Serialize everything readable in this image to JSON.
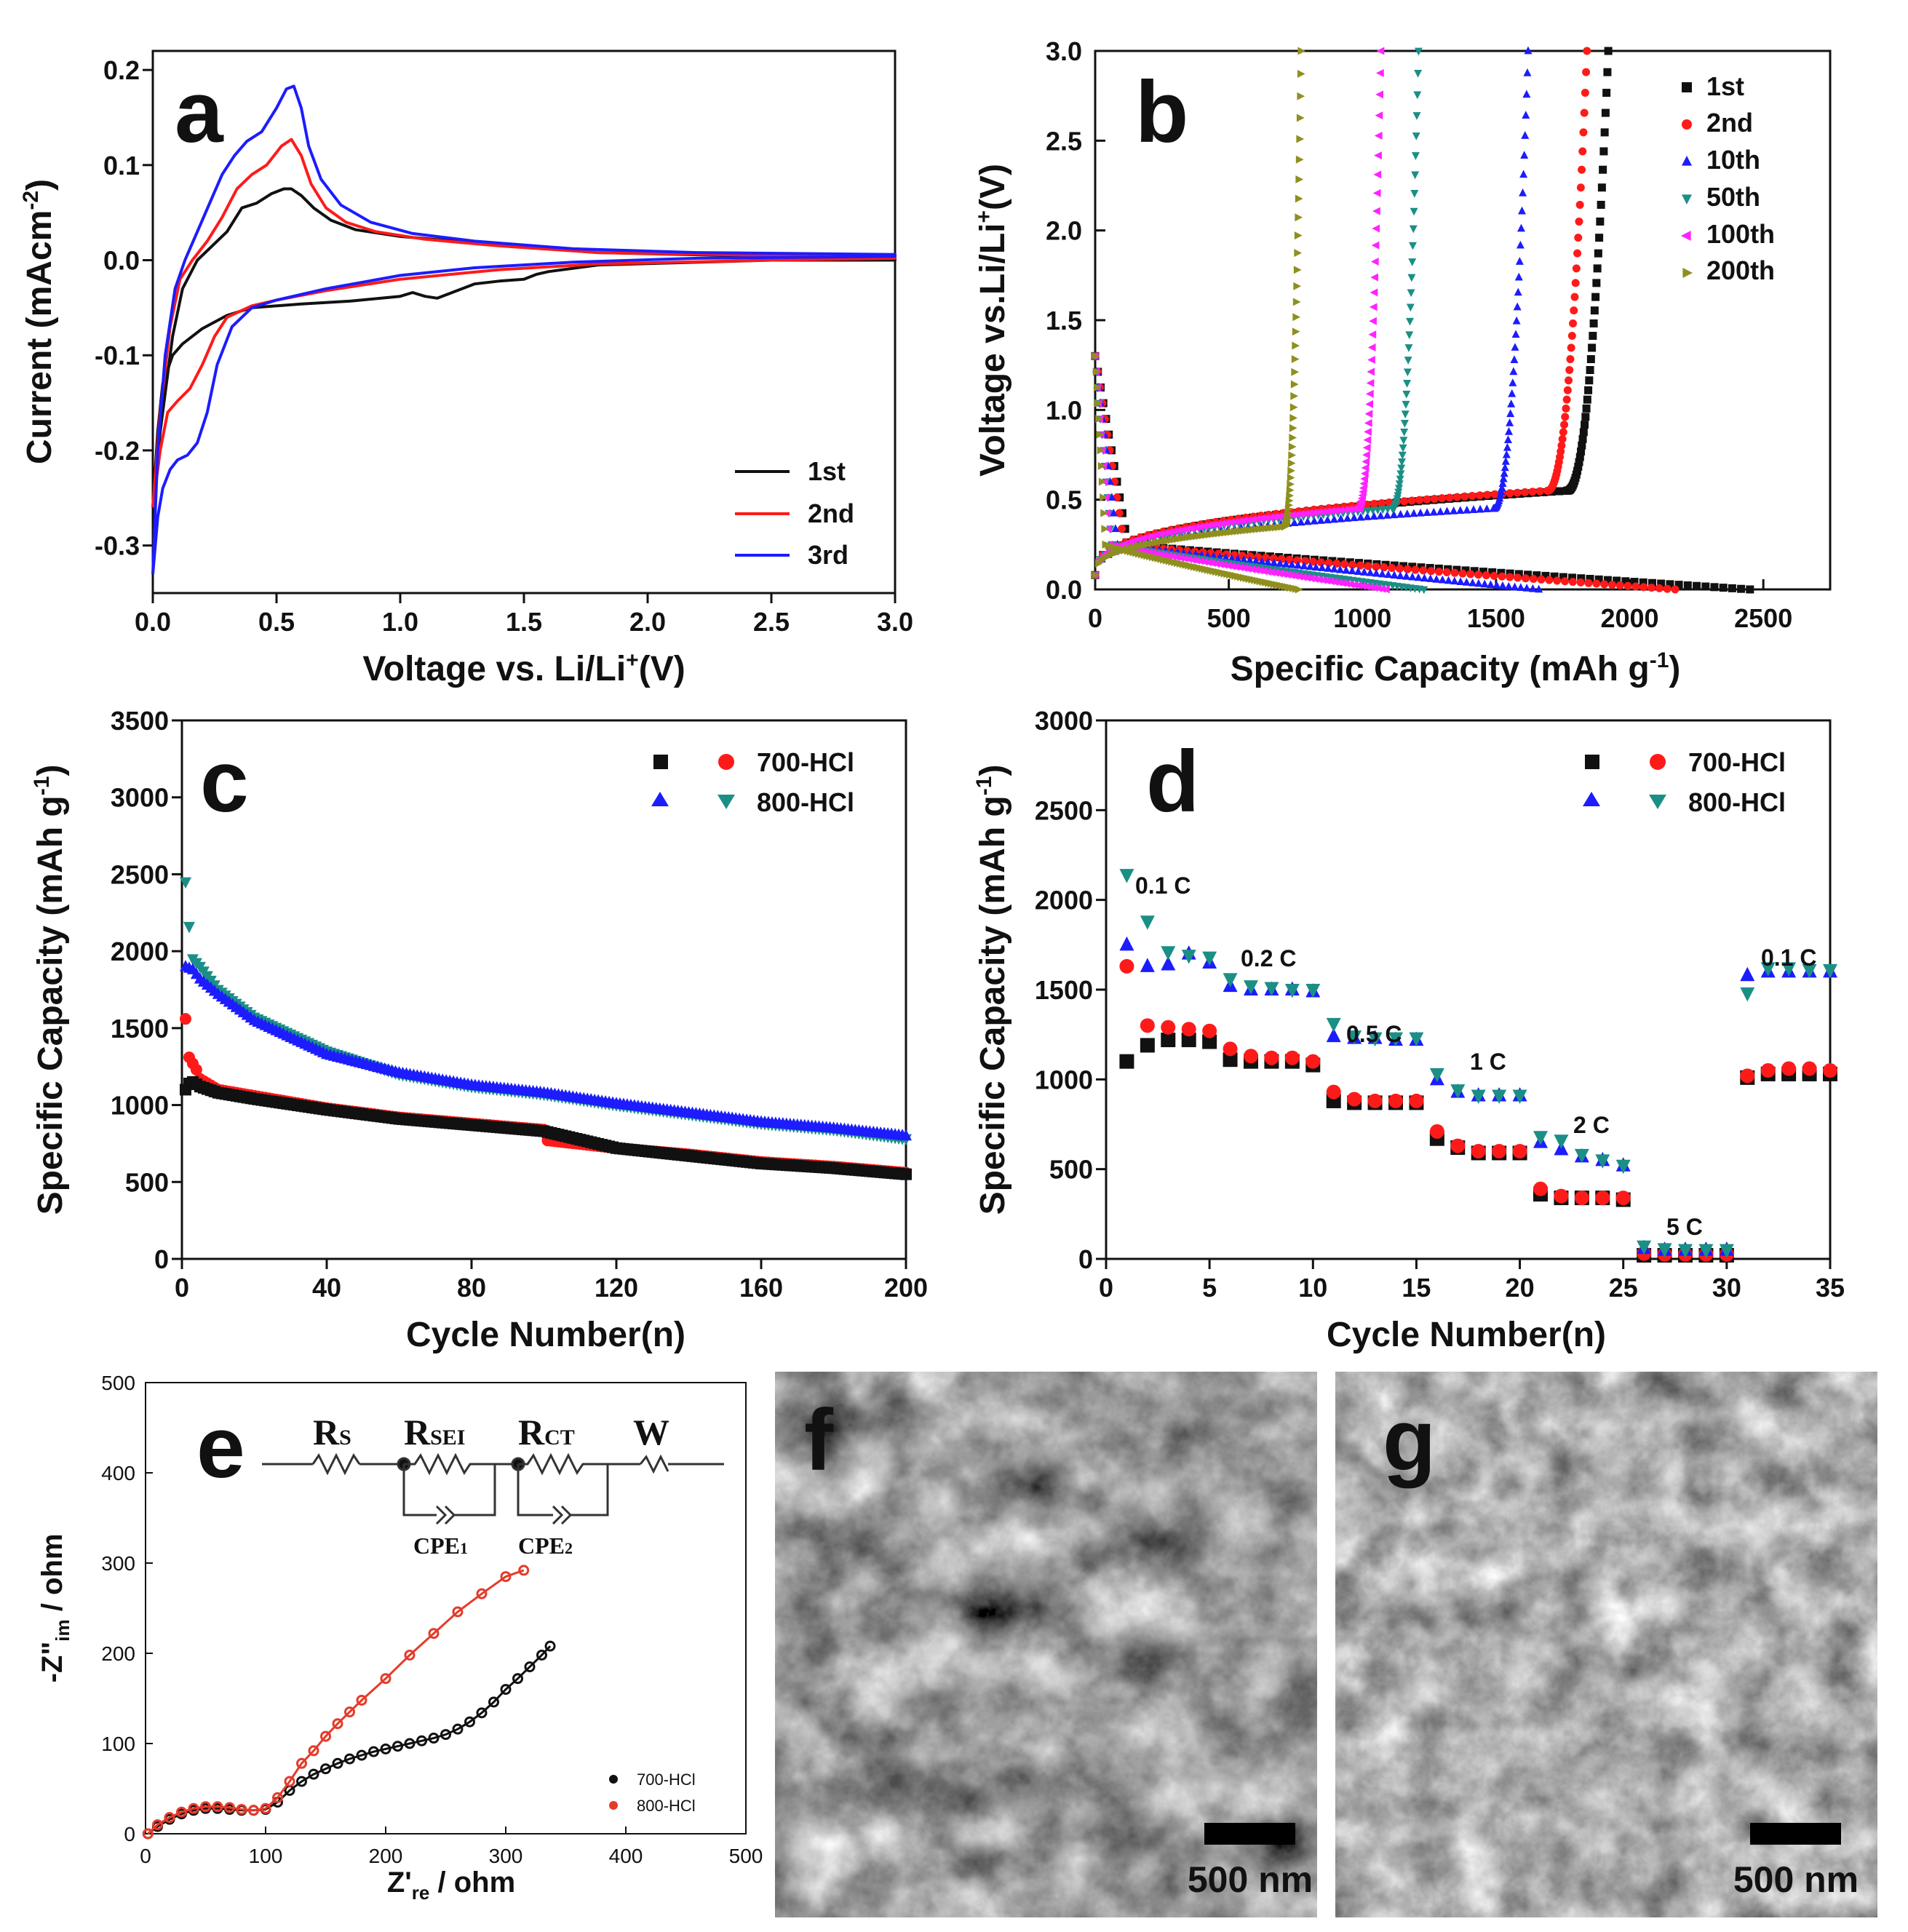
{
  "colors": {
    "black": "#111111",
    "red": "#ff1a1a",
    "blue": "#1c1cff",
    "teal": "#1b8f86",
    "magenta": "#ff22ff",
    "olive": "#8f8f1f",
    "darkred": "#e53b2a"
  },
  "chart_data": [
    {
      "id": "a",
      "type": "line",
      "panel_label": "a",
      "xlabel": "Voltage  vs. Li/Li",
      "xlabel_sup": "+",
      "xlabel_tail": "(V)",
      "ylabel": "Current (mAcm",
      "ylabel_sup": "-2",
      "ylabel_tail": ")",
      "xlim": [
        0,
        3
      ],
      "ylim": [
        -0.35,
        0.22
      ],
      "xticks": [
        "0.0",
        "0.5",
        "1.0",
        "1.5",
        "2.0",
        "2.5",
        "3.0"
      ],
      "yticks": [
        "-0.3",
        "-0.2",
        "-0.1",
        "0.0",
        "0.1",
        "0.2"
      ],
      "legend": [
        "1st",
        "2nd",
        "3rd"
      ],
      "series": [
        {
          "name": "1st",
          "color": "black",
          "x": [
            0.0,
            0.03,
            0.08,
            0.12,
            0.18,
            0.24,
            0.3,
            0.36,
            0.42,
            0.48,
            0.53,
            0.56,
            0.6,
            0.65,
            0.72,
            0.82,
            1.0,
            1.4,
            1.8,
            2.5,
            3.0,
            3.0,
            2.5,
            1.8,
            1.6,
            1.55,
            1.5,
            1.4,
            1.3,
            1.2,
            1.15,
            1.1,
            1.05,
            1.0,
            0.8,
            0.6,
            0.4,
            0.3,
            0.2,
            0.12,
            0.08,
            0.04,
            0.02,
            0.0
          ],
          "y": [
            -0.26,
            -0.18,
            -0.08,
            -0.03,
            0.0,
            0.015,
            0.03,
            0.055,
            0.06,
            0.07,
            0.075,
            0.075,
            0.068,
            0.055,
            0.042,
            0.032,
            0.025,
            0.016,
            0.008,
            0.004,
            0.003,
            0.0,
            0.0,
            -0.005,
            -0.012,
            -0.015,
            -0.02,
            -0.022,
            -0.025,
            -0.035,
            -0.04,
            -0.038,
            -0.034,
            -0.038,
            -0.043,
            -0.046,
            -0.05,
            -0.058,
            -0.072,
            -0.088,
            -0.1,
            -0.13,
            -0.18,
            -0.26
          ]
        },
        {
          "name": "2nd",
          "color": "red",
          "x": [
            0.0,
            0.03,
            0.07,
            0.11,
            0.16,
            0.22,
            0.28,
            0.34,
            0.4,
            0.46,
            0.52,
            0.56,
            0.6,
            0.64,
            0.7,
            0.78,
            0.9,
            1.1,
            1.4,
            1.8,
            2.5,
            3.0,
            3.0,
            2.5,
            1.8,
            1.4,
            1.0,
            0.7,
            0.5,
            0.4,
            0.3,
            0.25,
            0.2,
            0.15,
            0.1,
            0.06,
            0.03,
            0.0
          ],
          "y": [
            -0.26,
            -0.16,
            -0.07,
            -0.02,
            0.0,
            0.02,
            0.045,
            0.075,
            0.09,
            0.1,
            0.12,
            0.127,
            0.11,
            0.08,
            0.055,
            0.04,
            0.03,
            0.022,
            0.015,
            0.008,
            0.005,
            0.005,
            0.002,
            0.0,
            -0.004,
            -0.01,
            -0.02,
            -0.032,
            -0.042,
            -0.048,
            -0.06,
            -0.08,
            -0.11,
            -0.135,
            -0.148,
            -0.16,
            -0.2,
            -0.26
          ]
        },
        {
          "name": "3rd",
          "color": "blue",
          "x": [
            0.0,
            0.02,
            0.05,
            0.09,
            0.13,
            0.18,
            0.23,
            0.28,
            0.33,
            0.38,
            0.44,
            0.5,
            0.54,
            0.57,
            0.6,
            0.63,
            0.68,
            0.76,
            0.88,
            1.05,
            1.3,
            1.7,
            2.2,
            3.0,
            3.0,
            2.2,
            1.7,
            1.3,
            1.0,
            0.7,
            0.5,
            0.4,
            0.32,
            0.26,
            0.22,
            0.18,
            0.14,
            0.1,
            0.07,
            0.04,
            0.02,
            0.0
          ],
          "y": [
            -0.33,
            -0.2,
            -0.1,
            -0.03,
            0.0,
            0.03,
            0.06,
            0.09,
            0.11,
            0.125,
            0.135,
            0.16,
            0.18,
            0.183,
            0.16,
            0.12,
            0.085,
            0.058,
            0.04,
            0.028,
            0.02,
            0.012,
            0.008,
            0.006,
            0.004,
            0.002,
            -0.002,
            -0.008,
            -0.016,
            -0.03,
            -0.042,
            -0.05,
            -0.07,
            -0.11,
            -0.16,
            -0.192,
            -0.205,
            -0.21,
            -0.22,
            -0.24,
            -0.27,
            -0.33
          ]
        }
      ]
    },
    {
      "id": "b",
      "type": "scatter",
      "panel_label": "b",
      "xlabel": "Specific Capacity (mAh g",
      "xlabel_sup": "-1",
      "xlabel_tail": ")",
      "ylabel": "Voltage vs.Li/Li",
      "ylabel_sup": "+",
      "ylabel_tail": "(V)",
      "xlim": [
        0,
        2750
      ],
      "ylim": [
        0,
        3.0
      ],
      "xticks": [
        "0",
        "500",
        "1000",
        "1500",
        "2000",
        "2500"
      ],
      "yticks": [
        "0.0",
        "0.5",
        "1.0",
        "1.5",
        "2.0",
        "2.5",
        "3.0"
      ],
      "legend": [
        "1st",
        "2nd",
        "10th",
        "50th",
        "100th",
        "200th"
      ],
      "series": [
        {
          "name": "1st",
          "color": "black",
          "marker": "square",
          "discharge_capacity": 2450,
          "charge_capacity": 1920,
          "plateau": 0.55
        },
        {
          "name": "2nd",
          "color": "red",
          "marker": "circle",
          "discharge_capacity": 2170,
          "charge_capacity": 1840,
          "plateau": 0.55
        },
        {
          "name": "10th",
          "color": "blue",
          "marker": "triangle-up",
          "discharge_capacity": 1660,
          "charge_capacity": 1620,
          "plateau": 0.45
        },
        {
          "name": "50th",
          "color": "teal",
          "marker": "triangle-down",
          "discharge_capacity": 1230,
          "charge_capacity": 1210,
          "plateau": 0.45
        },
        {
          "name": "100th",
          "color": "magenta",
          "marker": "triangle-left",
          "discharge_capacity": 1090,
          "charge_capacity": 1070,
          "plateau": 0.45
        },
        {
          "name": "200th",
          "color": "olive",
          "marker": "triangle-right",
          "discharge_capacity": 760,
          "charge_capacity": 770,
          "plateau": 0.35
        }
      ]
    },
    {
      "id": "c",
      "type": "scatter",
      "panel_label": "c",
      "xlabel": "Cycle Number(n)",
      "ylabel": "Specific Capacity (mAh g",
      "ylabel_sup": "-1",
      "ylabel_tail": ")",
      "xlim": [
        0,
        200
      ],
      "ylim": [
        0,
        3500
      ],
      "xticks": [
        "0",
        "40",
        "80",
        "120",
        "160",
        "200"
      ],
      "yticks": [
        "0",
        "500",
        "1000",
        "1500",
        "2000",
        "2500",
        "3000",
        "3500"
      ],
      "legend": [
        "700-HCl",
        "800-HCl"
      ],
      "series": [
        {
          "name": "700-HCl discharge",
          "color": "red",
          "marker": "circle",
          "cycles": [
            1,
            2,
            3,
            4,
            5,
            10,
            20,
            40,
            60,
            80,
            100,
            101,
            120,
            140,
            160,
            180,
            200
          ],
          "values": [
            1560,
            1310,
            1270,
            1230,
            1170,
            1100,
            1060,
            980,
            920,
            880,
            840,
            770,
            720,
            680,
            630,
            600,
            560
          ]
        },
        {
          "name": "700-HCl charge",
          "color": "black",
          "marker": "square",
          "cycles": [
            1,
            2,
            3,
            5,
            10,
            20,
            40,
            60,
            80,
            100,
            120,
            140,
            160,
            180,
            200
          ],
          "values": [
            1100,
            1140,
            1150,
            1120,
            1080,
            1040,
            970,
            910,
            870,
            830,
            720,
            670,
            620,
            590,
            550
          ]
        },
        {
          "name": "800-HCl discharge",
          "color": "teal",
          "marker": "triangle-down",
          "cycles": [
            1,
            2,
            3,
            5,
            10,
            20,
            40,
            60,
            80,
            100,
            120,
            140,
            160,
            180,
            200
          ],
          "values": [
            2450,
            2160,
            1950,
            1900,
            1750,
            1570,
            1350,
            1200,
            1120,
            1070,
            1000,
            940,
            880,
            840,
            780
          ]
        },
        {
          "name": "800-HCl charge",
          "color": "blue",
          "marker": "triangle-up",
          "cycles": [
            1,
            3,
            5,
            10,
            20,
            40,
            60,
            80,
            100,
            120,
            140,
            160,
            180,
            200
          ],
          "values": [
            1900,
            1880,
            1820,
            1720,
            1550,
            1330,
            1210,
            1130,
            1080,
            1010,
            950,
            890,
            850,
            800
          ]
        }
      ]
    },
    {
      "id": "d",
      "type": "scatter",
      "panel_label": "d",
      "xlabel": "Cycle Number(n)",
      "ylabel": "Specific Capacity (mAh g",
      "ylabel_sup": "-1",
      "ylabel_tail": ")",
      "xlim": [
        0,
        35
      ],
      "ylim": [
        0,
        3000
      ],
      "xticks": [
        "0",
        "5",
        "10",
        "15",
        "20",
        "25",
        "30",
        "35"
      ],
      "yticks": [
        "0",
        "500",
        "1000",
        "1500",
        "2000",
        "2500",
        "3000"
      ],
      "legend": [
        "700-HCl",
        "800-HCl"
      ],
      "rate_labels": [
        "0.1 C",
        "0.2 C",
        "0.5 C",
        "1 C",
        "2 C",
        "5 C",
        "0.1 C"
      ],
      "series": [
        {
          "name": "700-HCl charge",
          "color": "black",
          "marker": "square",
          "values": [
            1100,
            1190,
            1220,
            1220,
            1210,
            1110,
            1100,
            1100,
            1100,
            1080,
            880,
            870,
            870,
            870,
            870,
            670,
            620,
            590,
            590,
            590,
            360,
            340,
            340,
            340,
            330,
            20,
            20,
            20,
            20,
            20,
            1010,
            1030,
            1030,
            1030,
            1030
          ]
        },
        {
          "name": "700-HCl discharge",
          "color": "red",
          "marker": "circle",
          "values": [
            1630,
            1300,
            1290,
            1280,
            1270,
            1170,
            1130,
            1120,
            1120,
            1100,
            930,
            890,
            880,
            880,
            880,
            710,
            630,
            600,
            600,
            600,
            390,
            350,
            340,
            340,
            340,
            30,
            25,
            25,
            25,
            25,
            1020,
            1050,
            1060,
            1060,
            1050
          ]
        },
        {
          "name": "800-HCl charge",
          "color": "blue",
          "marker": "triangle-up",
          "values": [
            1750,
            1630,
            1640,
            1700,
            1650,
            1520,
            1500,
            1500,
            1500,
            1490,
            1240,
            1230,
            1230,
            1220,
            1220,
            1000,
            930,
            910,
            910,
            910,
            650,
            610,
            570,
            550,
            520,
            60,
            50,
            50,
            50,
            50,
            1580,
            1600,
            1600,
            1600,
            1600
          ]
        },
        {
          "name": "800-HCl discharge",
          "color": "teal",
          "marker": "triangle-down",
          "values": [
            2140,
            1880,
            1710,
            1690,
            1680,
            1560,
            1520,
            1510,
            1500,
            1500,
            1310,
            1240,
            1230,
            1230,
            1230,
            1030,
            940,
            910,
            910,
            910,
            680,
            660,
            580,
            550,
            520,
            70,
            55,
            50,
            50,
            50,
            1480,
            1620,
            1620,
            1610,
            1610
          ]
        }
      ]
    },
    {
      "id": "e",
      "type": "scatter",
      "panel_label": "e",
      "xlabel": "Z'",
      "xlabel_sub": "re",
      "xlabel_tail": " / ohm",
      "ylabel": "-Z\"",
      "ylabel_sub": "im",
      "ylabel_tail": " / ohm",
      "xlim": [
        0,
        500
      ],
      "ylim": [
        0,
        500
      ],
      "xticks": [
        "0",
        "100",
        "200",
        "300",
        "400",
        "500"
      ],
      "yticks": [
        "0",
        "100",
        "200",
        "300",
        "400",
        "500"
      ],
      "legend": [
        "700-HCl",
        "800-HCl"
      ],
      "circuit_labels": [
        "R",
        "S",
        "R",
        "SEI",
        "R",
        "CT",
        "W",
        "CPE",
        "1",
        "CPE",
        "2"
      ],
      "series": [
        {
          "name": "700-HCl",
          "color": "black",
          "x": [
            2,
            10,
            20,
            30,
            40,
            50,
            60,
            70,
            80,
            90,
            100,
            110,
            120,
            130,
            140,
            150,
            160,
            170,
            180,
            190,
            200,
            210,
            220,
            230,
            240,
            250,
            260,
            270,
            280,
            290,
            300,
            310,
            320,
            330,
            337
          ],
          "y": [
            0,
            8,
            16,
            22,
            26,
            28,
            28,
            27,
            26,
            26,
            27,
            35,
            48,
            58,
            66,
            72,
            78,
            83,
            87,
            91,
            94,
            97,
            100,
            103,
            106,
            110,
            116,
            124,
            134,
            146,
            160,
            172,
            185,
            198,
            208
          ]
        },
        {
          "name": "800-HCl",
          "color": "darkred",
          "x": [
            2,
            10,
            20,
            30,
            40,
            50,
            60,
            70,
            80,
            90,
            100,
            110,
            120,
            130,
            140,
            150,
            160,
            170,
            180,
            200,
            220,
            240,
            260,
            280,
            300,
            315
          ],
          "y": [
            0,
            10,
            18,
            24,
            28,
            30,
            30,
            29,
            27,
            26,
            28,
            40,
            58,
            78,
            92,
            108,
            122,
            135,
            148,
            172,
            198,
            222,
            246,
            266,
            285,
            292
          ]
        }
      ]
    }
  ],
  "micrographs": [
    {
      "panel_label": "f",
      "scale_bar": "500 nm"
    },
    {
      "panel_label": "g",
      "scale_bar": "500 nm"
    }
  ]
}
